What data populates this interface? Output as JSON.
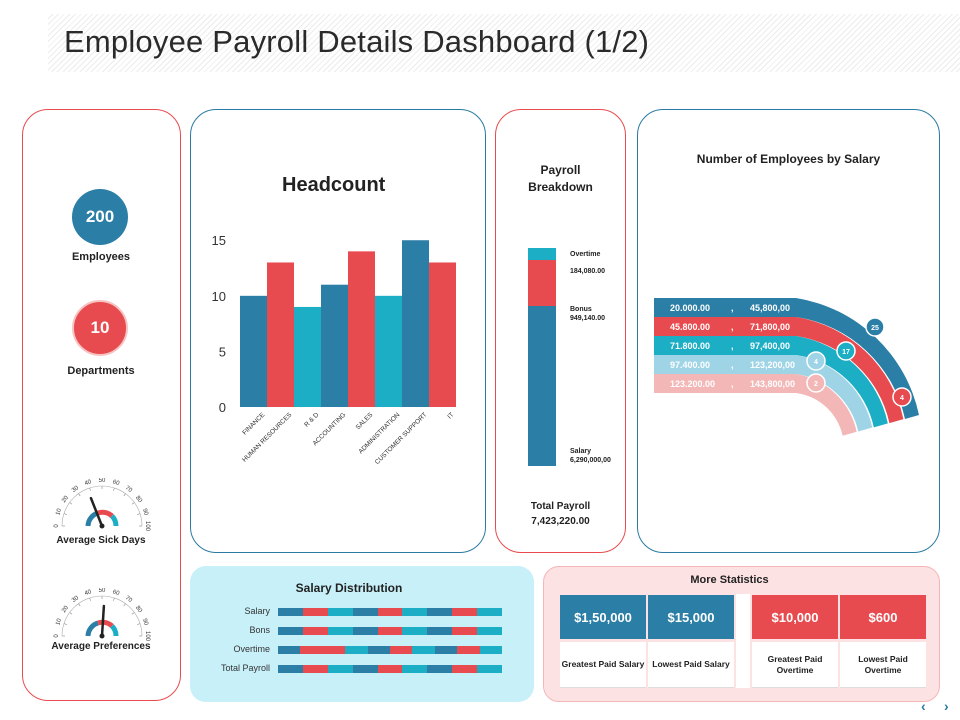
{
  "title": "Employee Payroll Details Dashboard (1/2)",
  "colors": {
    "blue": "#2b7ea6",
    "red": "#e84b4f",
    "teal": "#1baec5",
    "lightblue": "#9ed4e6",
    "pink": "#f4b7b7"
  },
  "kpis": {
    "employees": {
      "value": "200",
      "label": "Employees"
    },
    "departments": {
      "value": "10",
      "label": "Departments"
    }
  },
  "gauges": {
    "sick_days": {
      "label": "Average Sick Days",
      "ticks": [
        "0",
        "10",
        "20",
        "30",
        "40",
        "50",
        "60",
        "70",
        "80",
        "90",
        "100"
      ],
      "value": 38
    },
    "preferences": {
      "label": "Average Preferences",
      "ticks": [
        "0",
        "10",
        "20",
        "30",
        "40",
        "50",
        "60",
        "70",
        "80",
        "90",
        "100"
      ],
      "value": 52
    }
  },
  "headcount": {
    "chart_data": {
      "type": "bar",
      "title": "Headcount",
      "categories": [
        "FINANCE",
        "HUMAN RESOURCES",
        "R & D",
        "ACCOUNTING",
        "SALES",
        "ADMINISTRATION",
        "CUSTOMER SUPPORT",
        "IT"
      ],
      "bar_values": [
        10,
        13,
        9,
        11,
        14,
        10,
        15,
        13
      ],
      "bar_colors": [
        "#2b7ea6",
        "#e84b4f",
        "#1baec5",
        "#2b7ea6",
        "#e84b4f",
        "#1baec5",
        "#2b7ea6",
        "#e84b4f"
      ],
      "yticks": [
        "0",
        "5",
        "10",
        "15"
      ],
      "ylim": [
        0,
        17
      ]
    }
  },
  "payroll_breakdown": {
    "title_line1": "Payroll",
    "title_line2": "Breakdown",
    "segments": [
      {
        "name": "Overtime",
        "value": "184,080.00",
        "amount": 184080,
        "color": "#1baec5"
      },
      {
        "name": "Bonus",
        "value": "949,140.00",
        "amount": 949140,
        "color": "#e84b4f"
      },
      {
        "name": "Salary",
        "value": "6,290,000,00",
        "amount": 6290000,
        "color": "#2b7ea6"
      }
    ],
    "total_label": "Total Payroll",
    "total_value": "7,423,220.00"
  },
  "employees_by_salary": {
    "title": "Number of Employees by Salary",
    "rows": [
      {
        "from": "20.000.00",
        "sep": ",",
        "to": "45,800,00",
        "count": "25",
        "color": "#2b7ea6"
      },
      {
        "from": "45.800.00",
        "sep": ",",
        "to": "71,800,00",
        "count": "4",
        "color": "#e84b4f"
      },
      {
        "from": "71.800.00",
        "sep": ",",
        "to": "97,400,00",
        "count": "17",
        "color": "#1baec5"
      },
      {
        "from": "97.400.00",
        "sep": ",",
        "to": "123,200,00",
        "count": "4",
        "color": "#9ed4e6"
      },
      {
        "from": "123.200.00",
        "sep": ",",
        "to": "143,800,00",
        "count": "2",
        "color": "#f4b7b7"
      }
    ]
  },
  "salary_distribution": {
    "title": "Salary Distribution",
    "rows": [
      {
        "label": "Salary",
        "pattern": [
          "b",
          "r",
          "t",
          "b",
          "r",
          "t",
          "b",
          "r",
          "t"
        ]
      },
      {
        "label": "Bons",
        "pattern": [
          "b",
          "r",
          "t",
          "b",
          "r",
          "t",
          "b",
          "r",
          "t"
        ]
      },
      {
        "label": "Overtime",
        "pattern": [
          "b",
          "r",
          "r",
          "t",
          "b",
          "r",
          "t",
          "b",
          "r",
          "t"
        ]
      },
      {
        "label": "Total Payroll",
        "pattern": [
          "b",
          "r",
          "t",
          "b",
          "r",
          "t",
          "b",
          "r",
          "t"
        ]
      }
    ]
  },
  "more_statistics": {
    "title": "More Statistics",
    "items": [
      {
        "value": "$1,50,000",
        "label": "Greatest Paid Salary",
        "color": "#2b7ea6"
      },
      {
        "value": "$15,000",
        "label": "Lowest Paid Salary",
        "color": "#2b7ea6"
      },
      {
        "value": "$10,000",
        "label": "Greatest Paid Overtime",
        "color": "#e84b4f"
      },
      {
        "value": "$600",
        "label": "Lowest Paid Overtime",
        "color": "#e84b4f"
      }
    ]
  },
  "nav": {
    "prev": "‹",
    "next": "›"
  }
}
